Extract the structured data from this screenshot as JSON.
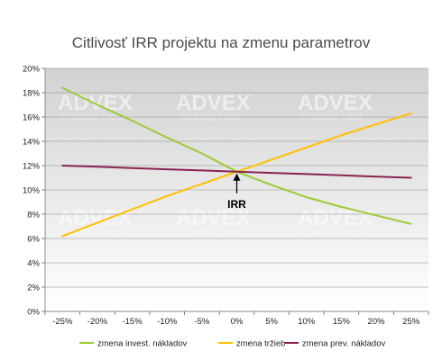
{
  "chart_data": {
    "type": "line",
    "title": "Citlivosť IRR projektu na zmenu parametrov",
    "xlabel": "",
    "ylabel": "",
    "x": [
      "-25%",
      "-20%",
      "-15%",
      "-10%",
      "-5%",
      "0%",
      "5%",
      "10%",
      "15%",
      "20%",
      "25%"
    ],
    "y_ticks": [
      "0%",
      "2%",
      "4%",
      "6%",
      "8%",
      "10%",
      "12%",
      "14%",
      "16%",
      "18%",
      "20%"
    ],
    "ylim": [
      0,
      20
    ],
    "grid": true,
    "legend_position": "bottom",
    "series": [
      {
        "name": "zmena invest. nákladov",
        "color": "#99cc33",
        "values": [
          18.4,
          17.0,
          15.7,
          14.3,
          13.0,
          11.5,
          10.4,
          9.4,
          8.6,
          7.9,
          7.2
        ]
      },
      {
        "name": "zmena tržieb",
        "color": "#ffc000",
        "values": [
          6.2,
          7.3,
          8.4,
          9.5,
          10.5,
          11.5,
          12.5,
          13.5,
          14.5,
          15.4,
          16.3
        ]
      },
      {
        "name": "zmena prev. nákladov",
        "color": "#8b2252",
        "values": [
          12.0,
          11.9,
          11.8,
          11.7,
          11.6,
          11.5,
          11.4,
          11.3,
          11.2,
          11.1,
          11.0
        ]
      }
    ],
    "annotations": [
      {
        "text": "IRR",
        "x": "0%",
        "y": 11.5
      }
    ]
  },
  "watermark": {
    "brand": "ADVEX",
    "sub": "CONSULTING"
  }
}
